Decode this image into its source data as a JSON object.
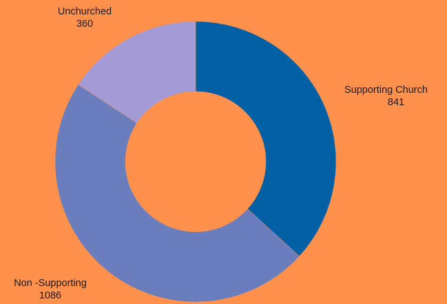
{
  "chart_data": {
    "type": "pie",
    "variant": "donut",
    "slices": [
      {
        "label": "Supporting Church",
        "value": 841,
        "value_text": "841",
        "color": "#0460A4"
      },
      {
        "label": "Non -Supporting",
        "value": 1086,
        "value_text": "1086",
        "color": "#6A7EBE"
      },
      {
        "label": "Unchurched",
        "value": 360,
        "value_text": "360",
        "color": "#A49AD6"
      }
    ],
    "background": "#FF914D",
    "legend": "none",
    "labels": "outside"
  }
}
